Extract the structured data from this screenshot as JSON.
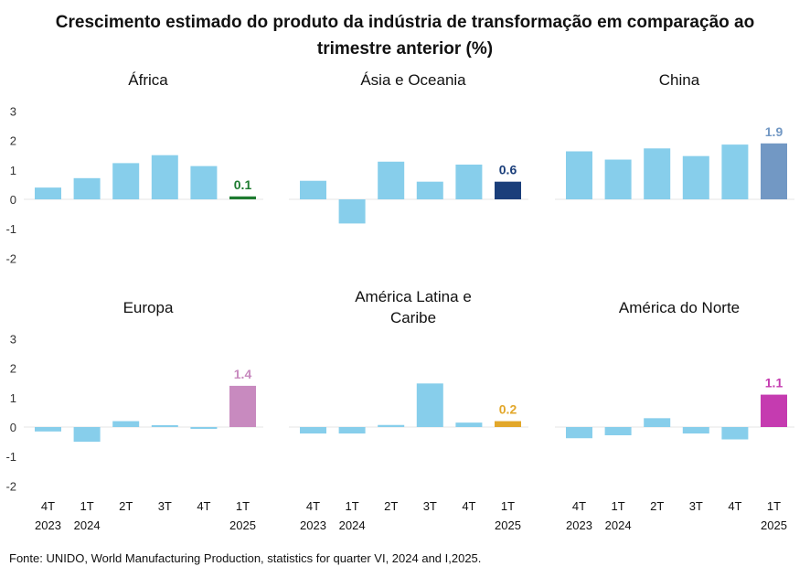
{
  "title": {
    "line1": "Crescimento estimado do produto da indústria de transformação em comparação ao",
    "line2": "trimestre anterior (%)"
  },
  "source": "Fonte: UNIDO, World Manufacturing Production, statistics for quarter VI, 2024 and I,2025.",
  "colors": {
    "default_bar": "#87ceeb",
    "zero_line": "#e6e6e6",
    "tick_text": "#333333"
  },
  "chart_data": [
    {
      "type": "bar",
      "title": "África",
      "title_lines": [
        "África"
      ],
      "categories": [
        "4T 2023",
        "1T 2024",
        "2T",
        "3T",
        "4T",
        "1T 2025"
      ],
      "values": [
        0.4,
        0.72,
        1.23,
        1.5,
        1.13,
        0.1
      ],
      "highlight_label": "0.1",
      "highlight_color": "#1e7b30",
      "ylim": [
        -2,
        3
      ],
      "yticks": [
        "3",
        "2",
        "1",
        "0",
        "-1",
        "-2"
      ]
    },
    {
      "type": "bar",
      "title": "Ásia e Oceania",
      "title_lines": [
        "Ásia e Oceania"
      ],
      "categories": [
        "4T 2023",
        "1T 2024",
        "2T",
        "3T",
        "4T",
        "1T 2025"
      ],
      "values": [
        0.63,
        -0.82,
        1.28,
        0.6,
        1.18,
        0.6
      ],
      "highlight_label": "0.6",
      "highlight_color": "#1a3e7a",
      "ylim": [
        -2,
        3
      ],
      "yticks": []
    },
    {
      "type": "bar",
      "title": "China",
      "title_lines": [
        "China"
      ],
      "categories": [
        "4T 2023",
        "1T 2024",
        "2T",
        "3T",
        "4T",
        "1T 2025"
      ],
      "values": [
        1.63,
        1.35,
        1.73,
        1.47,
        1.86,
        1.9
      ],
      "highlight_label": "1.9",
      "highlight_color": "#7298c4",
      "ylim": [
        -2,
        3
      ],
      "yticks": []
    },
    {
      "type": "bar",
      "title": "Europa",
      "title_lines": [
        "Europa"
      ],
      "categories": [
        "4T 2023",
        "1T 2024",
        "2T",
        "3T",
        "4T",
        "1T 2025"
      ],
      "values": [
        -0.15,
        -0.5,
        0.2,
        0.05,
        -0.05,
        1.4
      ],
      "highlight_label": "1.4",
      "highlight_color": "#c88abf",
      "ylim": [
        -2,
        3
      ],
      "yticks": [
        "3",
        "2",
        "1",
        "0",
        "-1",
        "-2"
      ]
    },
    {
      "type": "bar",
      "title": "América Latina e Caribe",
      "title_lines": [
        "América Latina e",
        "Caribe"
      ],
      "categories": [
        "4T 2023",
        "1T 2024",
        "2T",
        "3T",
        "4T",
        "1T 2025"
      ],
      "values": [
        -0.22,
        -0.22,
        0.07,
        1.48,
        0.15,
        0.2
      ],
      "highlight_label": "0.2",
      "highlight_color": "#e2a72a",
      "ylim": [
        -2,
        3
      ],
      "yticks": []
    },
    {
      "type": "bar",
      "title": "América do Norte",
      "title_lines": [
        "América do Norte"
      ],
      "categories": [
        "4T 2023",
        "1T 2024",
        "2T",
        "3T",
        "4T",
        "1T 2025"
      ],
      "values": [
        -0.38,
        -0.28,
        0.3,
        -0.22,
        -0.42,
        1.1
      ],
      "highlight_label": "1.1",
      "highlight_color": "#c53bb0",
      "ylim": [
        -2,
        3
      ],
      "yticks": []
    }
  ],
  "x_tick_lines": [
    [
      "4T",
      "2023"
    ],
    [
      "1T",
      "2024"
    ],
    [
      "2T",
      ""
    ],
    [
      "3T",
      ""
    ],
    [
      "4T",
      ""
    ],
    [
      "1T",
      "2025"
    ]
  ]
}
